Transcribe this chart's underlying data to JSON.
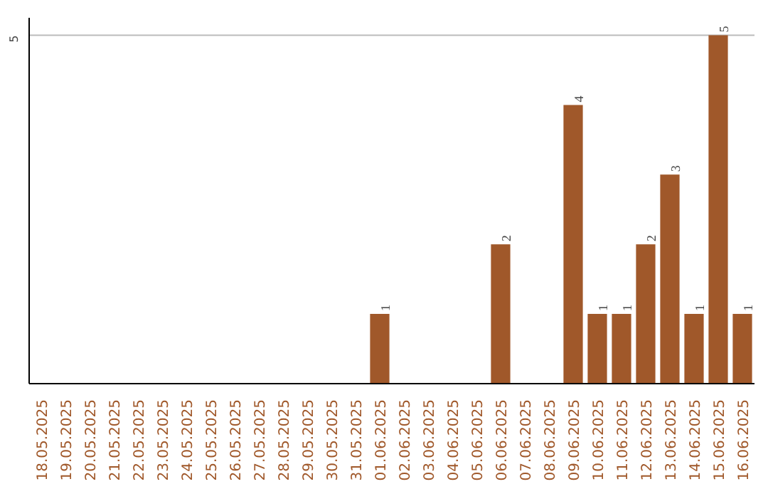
{
  "chart_data": {
    "type": "bar",
    "categories": [
      "18.05.2025",
      "19.05.2025",
      "20.05.2025",
      "21.05.2025",
      "22.05.2025",
      "23.05.2025",
      "24.05.2025",
      "25.05.2025",
      "26.05.2025",
      "27.05.2025",
      "28.05.2025",
      "29.05.2025",
      "30.05.2025",
      "31.05.2025",
      "01.06.2025",
      "02.06.2025",
      "03.06.2025",
      "04.06.2025",
      "05.06.2025",
      "06.06.2025",
      "07.06.2025",
      "08.06.2025",
      "09.06.2025",
      "10.06.2025",
      "11.06.2025",
      "12.06.2025",
      "13.06.2025",
      "14.06.2025",
      "15.06.2025",
      "16.06.2025"
    ],
    "values": [
      null,
      null,
      null,
      null,
      null,
      null,
      null,
      null,
      null,
      null,
      null,
      null,
      null,
      null,
      1,
      null,
      null,
      null,
      null,
      2,
      null,
      null,
      4,
      1,
      1,
      2,
      3,
      1,
      5,
      1
    ],
    "color": "#a0582a",
    "ylim": [
      0,
      5
    ],
    "yticks": [
      5
    ],
    "ref_lines": [
      {
        "axis": "y",
        "value": 5,
        "color": "#bbbbbb"
      }
    ],
    "data_labels": true
  }
}
